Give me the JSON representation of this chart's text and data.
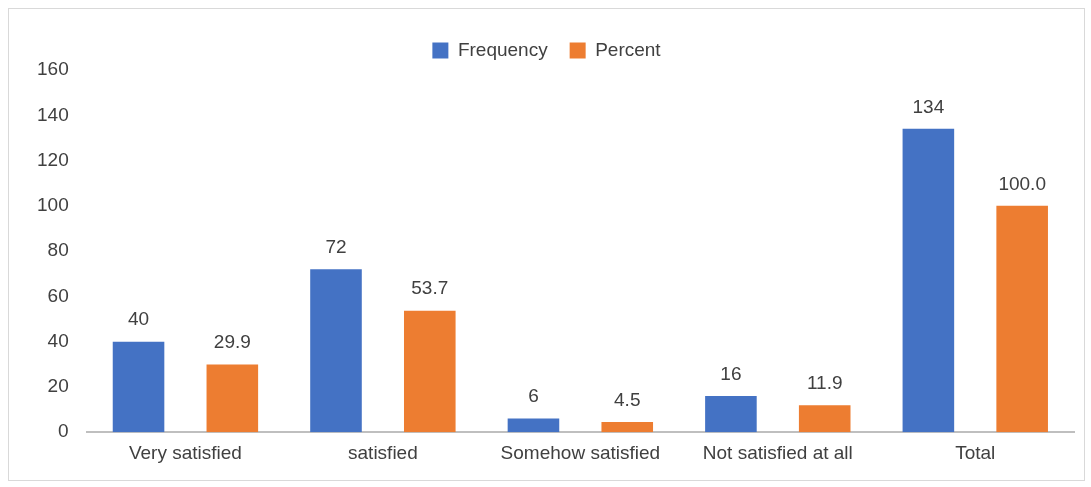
{
  "chart_data": {
    "type": "bar",
    "categories": [
      "Very satisfied",
      "satisfied",
      "Somehow satisfied",
      "Not satisfied at all",
      "Total"
    ],
    "series": [
      {
        "name": "Frequency",
        "color": "#4472c4",
        "values": [
          40,
          72,
          6,
          16,
          134
        ],
        "value_labels": [
          "40",
          "72",
          "6",
          "16",
          "134"
        ]
      },
      {
        "name": "Percent",
        "color": "#ed7d31",
        "values": [
          29.9,
          53.7,
          4.5,
          11.9,
          100.0
        ],
        "value_labels": [
          "29.9",
          "53.7",
          "4.5",
          "11.9",
          "100.0"
        ]
      }
    ],
    "ylim": [
      0,
      160
    ],
    "yticks": [
      0,
      20,
      40,
      60,
      80,
      100,
      120,
      140,
      160
    ],
    "grid": false,
    "legend": "top"
  }
}
